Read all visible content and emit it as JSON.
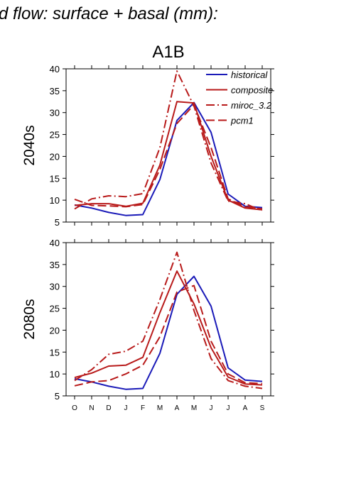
{
  "figure": {
    "title": "d flow: surface + basal (mm):",
    "subtitle": "A1B"
  },
  "legend": [
    "historical",
    "composite",
    "miroc_3.2",
    "pcm1"
  ],
  "colors": {
    "historical": "#1a1ab8",
    "scenario": "#b81a1a"
  },
  "chart_data": [
    {
      "type": "line",
      "ylabel": "2040s",
      "ylim": [
        5,
        40
      ],
      "yticks": [
        5,
        10,
        15,
        20,
        25,
        30,
        35,
        40
      ],
      "categories": [
        "O",
        "N",
        "D",
        "J",
        "F",
        "M",
        "A",
        "M",
        "J",
        "J",
        "A",
        "S"
      ],
      "series": [
        {
          "name": "historical",
          "style": "solid",
          "color": "#1a1ab8",
          "values": [
            8.9,
            8.2,
            7.2,
            6.5,
            6.7,
            14.7,
            28.2,
            32.3,
            25.5,
            11.4,
            8.6,
            8.3
          ]
        },
        {
          "name": "composite",
          "style": "solid",
          "color": "#b81a1a",
          "values": [
            8.8,
            9.2,
            9.2,
            8.6,
            9.3,
            18.0,
            32.5,
            32.2,
            20.0,
            10.0,
            8.2,
            7.8
          ]
        },
        {
          "name": "miroc_3.2",
          "style": "dashdot",
          "color": "#b81a1a",
          "values": [
            8.0,
            10.3,
            11.0,
            10.8,
            11.5,
            22.0,
            39.5,
            31.5,
            18.5,
            9.8,
            9.2,
            7.6
          ]
        },
        {
          "name": "pcm1",
          "style": "dashed",
          "color": "#b81a1a",
          "values": [
            10.2,
            8.8,
            8.7,
            8.5,
            9.0,
            17.0,
            27.5,
            31.8,
            22.0,
            10.3,
            8.5,
            8.0
          ]
        }
      ]
    },
    {
      "type": "line",
      "ylabel": "2080s",
      "ylim": [
        5,
        40
      ],
      "yticks": [
        5,
        10,
        15,
        20,
        25,
        30,
        35,
        40
      ],
      "categories": [
        "O",
        "N",
        "D",
        "J",
        "F",
        "M",
        "A",
        "M",
        "J",
        "J",
        "A",
        "S"
      ],
      "series": [
        {
          "name": "historical",
          "style": "solid",
          "color": "#1a1ab8",
          "values": [
            8.9,
            8.2,
            7.2,
            6.5,
            6.7,
            14.7,
            28.2,
            32.3,
            25.5,
            11.4,
            8.6,
            8.3
          ]
        },
        {
          "name": "composite",
          "style": "solid",
          "color": "#b81a1a",
          "values": [
            9.2,
            10.2,
            11.8,
            12.0,
            13.8,
            24.0,
            33.5,
            26.0,
            16.0,
            9.3,
            7.7,
            7.5
          ]
        },
        {
          "name": "miroc_3.2",
          "style": "dashdot",
          "color": "#b81a1a",
          "values": [
            8.5,
            11.0,
            14.5,
            15.2,
            17.5,
            27.0,
            37.8,
            24.5,
            13.5,
            8.5,
            7.2,
            6.7
          ]
        },
        {
          "name": "pcm1",
          "style": "dashed",
          "color": "#b81a1a",
          "values": [
            7.3,
            8.2,
            8.5,
            10.0,
            12.0,
            18.5,
            28.7,
            30.2,
            17.5,
            10.0,
            8.0,
            7.8
          ]
        }
      ]
    }
  ]
}
